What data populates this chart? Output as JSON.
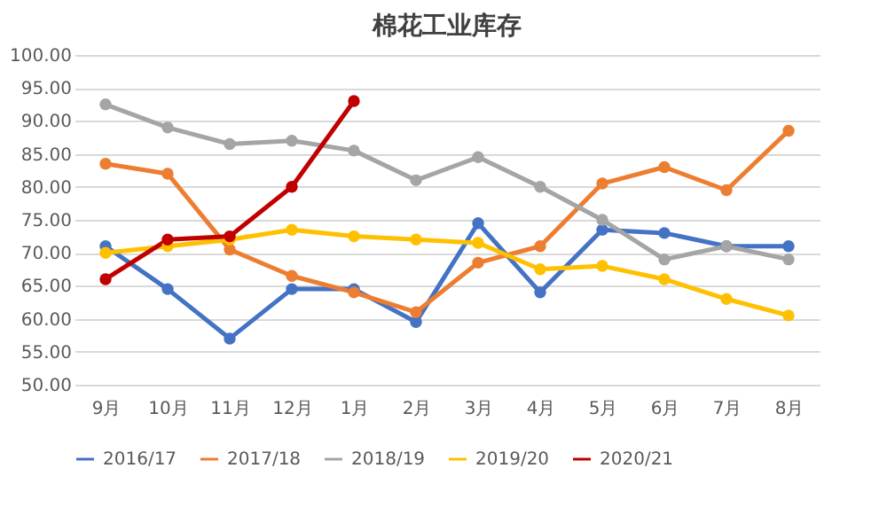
{
  "chart_data": {
    "type": "line",
    "title": "棉花工业库存",
    "categories": [
      "9月",
      "10月",
      "11月",
      "12月",
      "1月",
      "2月",
      "3月",
      "4月",
      "5月",
      "6月",
      "7月",
      "8月"
    ],
    "series": [
      {
        "name": "2016/17",
        "color": "#4472c4",
        "values": [
          71,
          64.5,
          57,
          64.5,
          64.5,
          59.5,
          74.5,
          64,
          73.5,
          73,
          71,
          71
        ]
      },
      {
        "name": "2017/18",
        "color": "#ed7d31",
        "values": [
          83.5,
          82,
          70.5,
          66.5,
          64,
          61,
          68.5,
          71,
          80.5,
          83,
          79.5,
          88.5
        ]
      },
      {
        "name": "2018/19",
        "color": "#a5a5a5",
        "values": [
          92.5,
          89,
          86.5,
          87,
          85.5,
          81,
          84.5,
          80,
          75,
          69,
          71,
          69
        ]
      },
      {
        "name": "2019/20",
        "color": "#ffc000",
        "values": [
          70,
          71,
          72,
          73.5,
          72.5,
          72,
          71.5,
          67.5,
          68,
          66,
          63,
          60.5
        ]
      },
      {
        "name": "2020/21",
        "color": "#c00000",
        "values": [
          66,
          72,
          72.5,
          80,
          93,
          null,
          null,
          null,
          null,
          null,
          null,
          null
        ]
      }
    ],
    "ylim": [
      50,
      100
    ],
    "yticks": [
      {
        "value": 50,
        "label": "50.00"
      },
      {
        "value": 55,
        "label": "55.00"
      },
      {
        "value": 60,
        "label": "60.00"
      },
      {
        "value": 65,
        "label": "65.00"
      },
      {
        "value": 70,
        "label": "70.00"
      },
      {
        "value": 75,
        "label": "75.00"
      },
      {
        "value": 80,
        "label": "80.00"
      },
      {
        "value": 85,
        "label": "85.00"
      },
      {
        "value": 90,
        "label": "90.00"
      },
      {
        "value": 95,
        "label": "95.00"
      },
      {
        "value": 100,
        "label": "100.00"
      }
    ],
    "grid": "y",
    "legend": "bottom",
    "marker": "circle",
    "line_style": "solid"
  }
}
